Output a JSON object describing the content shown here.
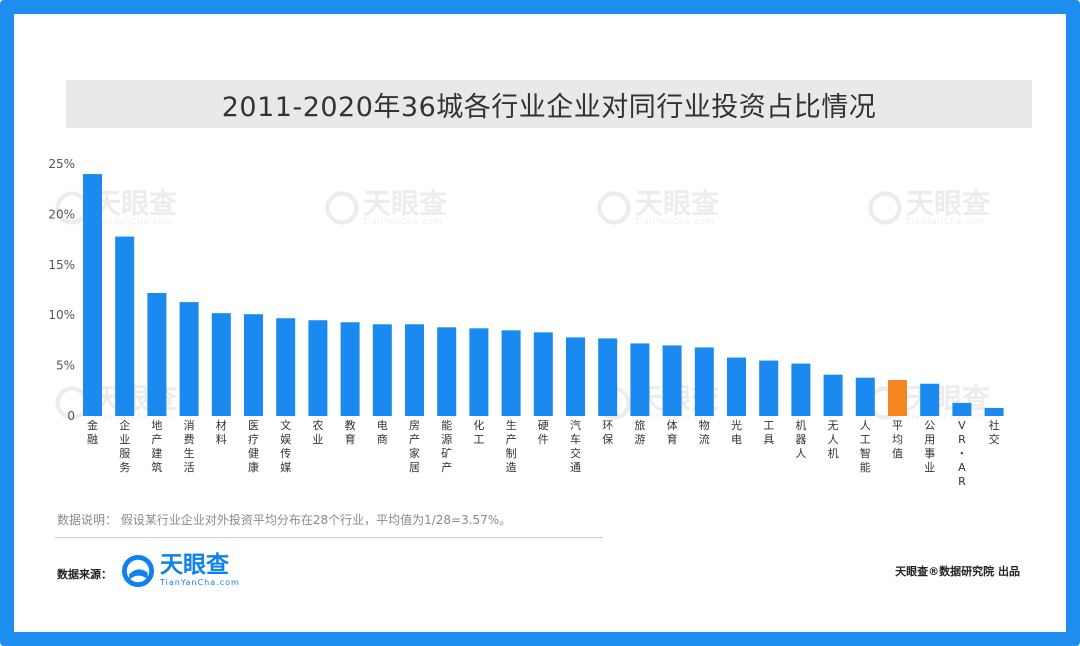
{
  "title": "2011-2020年36城各行业企业对同行业投资占比情况",
  "chart_data": {
    "type": "bar",
    "categories": [
      "金融",
      "企业服务",
      "地产建筑",
      "消费生活",
      "材料",
      "医疗健康",
      "文娱传媒",
      "农业",
      "教育",
      "电商",
      "房产家居",
      "能源矿产",
      "化工",
      "生产制造",
      "硬件",
      "汽车交通",
      "环保",
      "旅游",
      "体育",
      "物流",
      "光电",
      "工具",
      "机器人",
      "无人机",
      "人工智能",
      "平均值",
      "公用事业",
      "VR・AR",
      "社交"
    ],
    "values": [
      24.0,
      17.8,
      12.2,
      11.3,
      10.2,
      10.1,
      9.7,
      9.5,
      9.3,
      9.1,
      9.1,
      8.8,
      8.7,
      8.5,
      8.3,
      7.8,
      7.7,
      7.2,
      7.0,
      6.8,
      5.8,
      5.5,
      5.2,
      4.1,
      3.8,
      3.57,
      3.2,
      1.3,
      0.8
    ],
    "highlight": "平均值",
    "ylim": [
      0,
      25
    ],
    "yticks": [
      "0",
      "5%",
      "10%",
      "15%",
      "20%",
      "25%"
    ],
    "xlabel": "",
    "ylabel": "",
    "grid": false,
    "colors": {
      "bar": "#1a8af0",
      "highlight": "#f5861f"
    }
  },
  "note": "数据说明：  假设某行业企业对外投资平均分布在28个行业，平均值为1/28=3.57%。",
  "source_label": "数据来源：",
  "logo": {
    "name": "天眼查",
    "domain": "TianYanCha.com"
  },
  "credit": "天眼查®数据研究院 出品",
  "icons": {
    "logo": "tianyancha-logo-icon"
  }
}
